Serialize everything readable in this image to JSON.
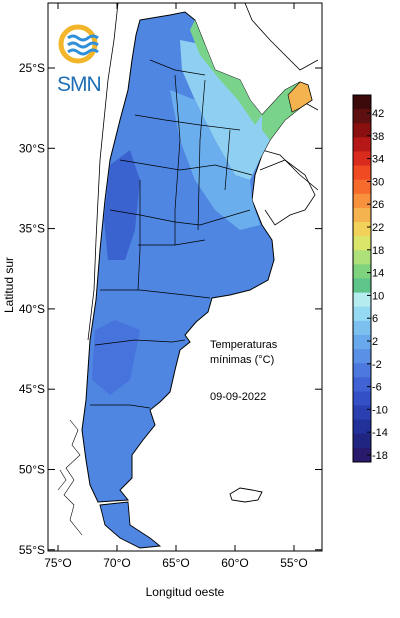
{
  "logo": {
    "text": "SMN",
    "icon": "smn-sun-wave-logo"
  },
  "axes": {
    "ylabel": "Latitud sur",
    "xlabel": "Longitud oeste",
    "lat_ticks": [
      "25°S",
      "30°S",
      "35°S",
      "40°S",
      "45°S",
      "50°S",
      "55°S"
    ],
    "lon_ticks": [
      "75°O",
      "70°O",
      "65°O",
      "60°O",
      "55°O"
    ]
  },
  "annotation": {
    "line1": "Temperaturas",
    "line2": "mínimas (°C)",
    "date": "09-09-2022"
  },
  "colorbar": {
    "labels": [
      "42",
      "38",
      "34",
      "30",
      "26",
      "22",
      "18",
      "14",
      "10",
      "6",
      "2",
      "-2",
      "-6",
      "-10",
      "-14",
      "-18"
    ],
    "colors": [
      "#3c0a0a",
      "#5e0f0f",
      "#8a0f0f",
      "#b61818",
      "#d92b1e",
      "#ef4a22",
      "#f66a2c",
      "#f7913e",
      "#f5b34f",
      "#f2d25a",
      "#d9e66a",
      "#aee17a",
      "#7fd37f",
      "#5fc48a",
      "#b5ecf0",
      "#96d9f3",
      "#7cc0f0",
      "#68a8ec",
      "#5a90e6",
      "#4d78de",
      "#3f62d4",
      "#3450c6",
      "#2a3fb0",
      "#22309a",
      "#1f2580",
      "#2a1a6e"
    ],
    "colors_bottom": [
      "#2a3fb0",
      "#22309a",
      "#2a1a6e"
    ]
  }
}
